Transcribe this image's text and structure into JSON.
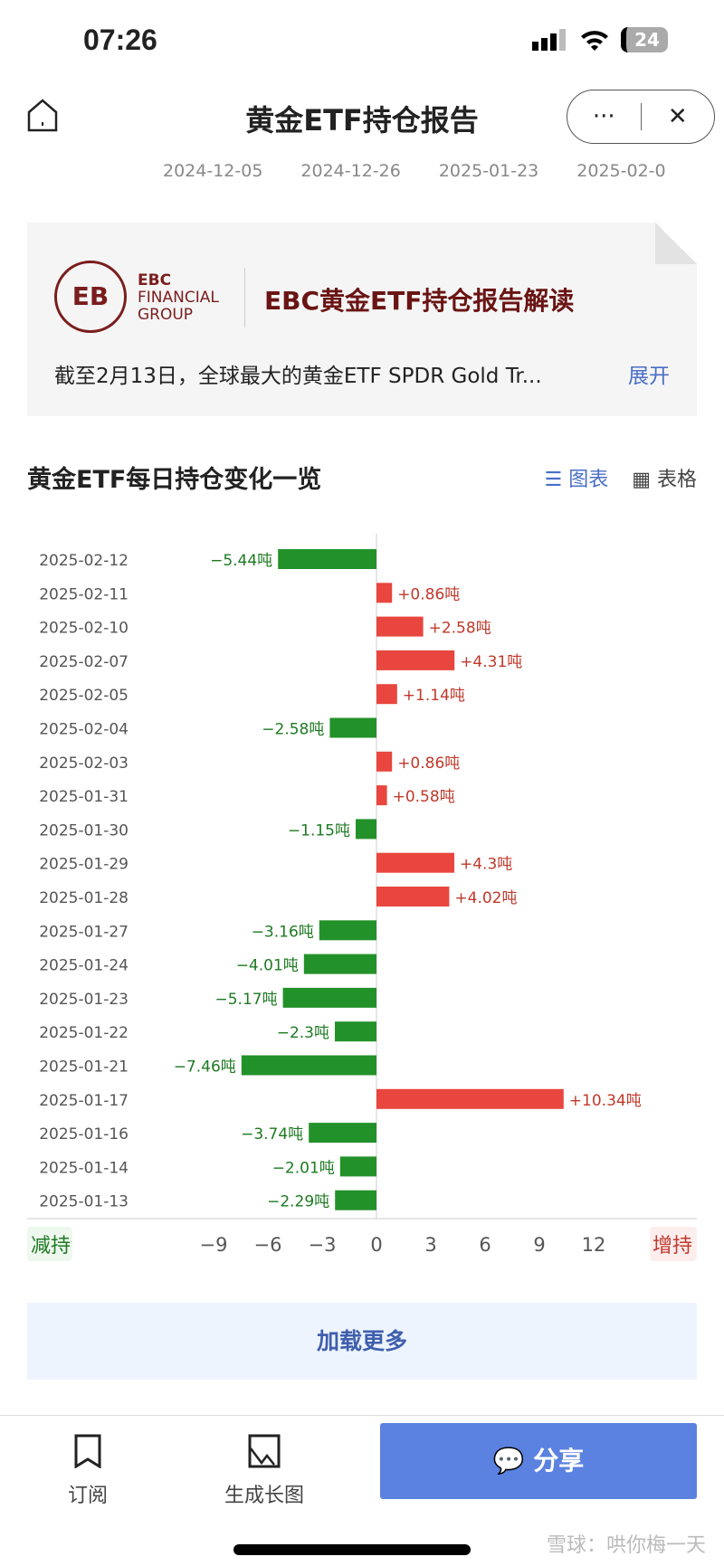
{
  "status_bar": {
    "time": "07:26",
    "battery": "24"
  },
  "nav": {
    "title": "黄金ETF持仓报告",
    "more_icon": "···",
    "close_icon": "✕"
  },
  "date_strip": [
    "2024-12-05",
    "2024-12-26",
    "2025-01-23",
    "2025-02-0"
  ],
  "card": {
    "logo_mark": "EB",
    "logo_lines": [
      "EBC",
      "FINANCIAL",
      "GROUP"
    ],
    "title": "EBC黄金ETF持仓报告解读",
    "desc": "截至2月13日，全球最大的黄金ETF SPDR Gold Tr...",
    "expand": "展开"
  },
  "section": {
    "title": "黄金ETF每日持仓变化一览",
    "tab_chart": "图表",
    "tab_table": "表格"
  },
  "chart_data": {
    "type": "bar",
    "orientation": "horizontal",
    "categories": [
      "2025-02-12",
      "2025-02-11",
      "2025-02-10",
      "2025-02-07",
      "2025-02-05",
      "2025-02-04",
      "2025-02-03",
      "2025-01-31",
      "2025-01-30",
      "2025-01-29",
      "2025-01-28",
      "2025-01-27",
      "2025-01-24",
      "2025-01-23",
      "2025-01-22",
      "2025-01-21",
      "2025-01-17",
      "2025-01-16",
      "2025-01-14",
      "2025-01-13"
    ],
    "values": [
      -5.44,
      0.86,
      2.58,
      4.31,
      1.14,
      -2.58,
      0.86,
      0.58,
      -1.15,
      4.3,
      4.02,
      -3.16,
      -4.01,
      -5.17,
      -2.3,
      -7.46,
      10.34,
      -3.74,
      -2.01,
      -2.29
    ],
    "labels": [
      "−5.44吨",
      "+0.86吨",
      "+2.58吨",
      "+4.31吨",
      "+1.14吨",
      "−2.58吨",
      "+0.86吨",
      "+0.58吨",
      "−1.15吨",
      "+4.3吨",
      "+4.02吨",
      "−3.16吨",
      "−4.01吨",
      "−5.17吨",
      "−2.3吨",
      "−7.46吨",
      "+10.34吨",
      "−3.74吨",
      "−2.01吨",
      "−2.29吨"
    ],
    "xticks": [
      "−9",
      "−6",
      "−3",
      "0",
      "3",
      "6",
      "9",
      "12"
    ],
    "xlim": [
      -12,
      15
    ],
    "left_label": "减持",
    "right_label": "增持",
    "colors": {
      "positive": "#e8463e",
      "negative": "#23912a",
      "positive_text": "#c0392b",
      "negative_text": "#1e7a22"
    }
  },
  "load_more": "加载更多",
  "bottom": {
    "subscribe": "订阅",
    "long_image": "生成长图",
    "share": "分享"
  },
  "watermark": "雪球：哄你梅一天"
}
